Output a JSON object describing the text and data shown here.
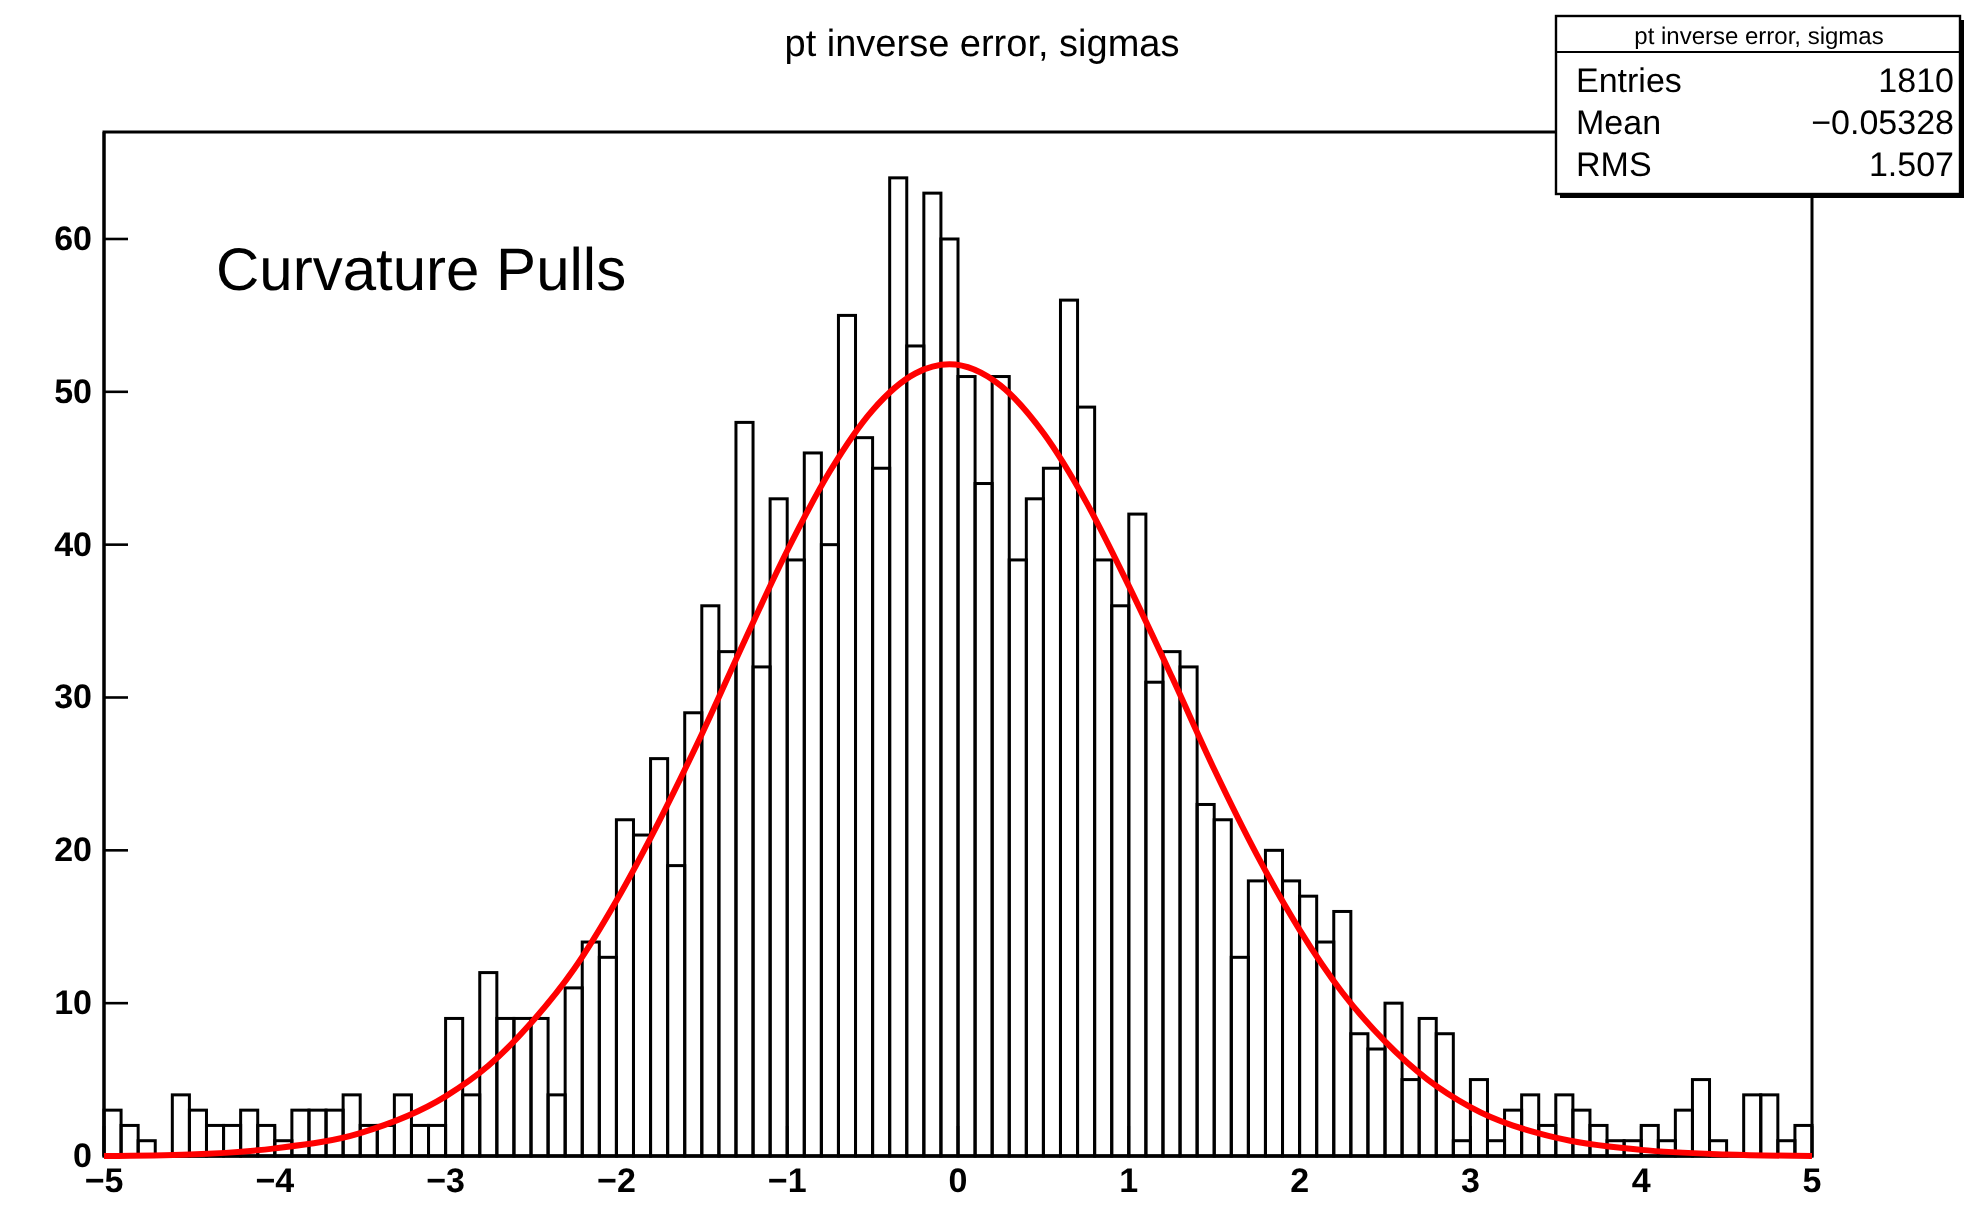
{
  "chart_data": {
    "type": "histogram",
    "title": "pt inverse error, sigmas",
    "bins": [
      -5,
      -4.9,
      -4.8,
      -4.7,
      -4.6,
      -4.5,
      -4.4,
      -4.3,
      -4.2,
      -4.1,
      -4,
      -3.9,
      -3.8,
      -3.7,
      -3.6,
      -3.5,
      -3.4,
      -3.3,
      -3.2,
      -3.1,
      -3,
      -2.9,
      -2.8,
      -2.7,
      -2.6,
      -2.5,
      -2.4,
      -2.3,
      -2.2,
      -2.1,
      -2,
      -1.9,
      -1.8,
      -1.7,
      -1.6,
      -1.5,
      -1.4,
      -1.3,
      -1.2,
      -1.1,
      -1,
      -0.9,
      -0.8,
      -0.7,
      -0.6,
      -0.5,
      -0.4,
      -0.3,
      -0.2,
      -0.1,
      0,
      0.1,
      0.2,
      0.3,
      0.4,
      0.5,
      0.6,
      0.7,
      0.8,
      0.9,
      1,
      1.1,
      1.2,
      1.3,
      1.4,
      1.5,
      1.6,
      1.7,
      1.8,
      1.9,
      2,
      2.1,
      2.2,
      2.3,
      2.4,
      2.5,
      2.6,
      2.7,
      2.8,
      2.9,
      3,
      3.1,
      3.2,
      3.3,
      3.4,
      3.5,
      3.6,
      3.7,
      3.8,
      3.9,
      4,
      4.1,
      4.2,
      4.3,
      4.4,
      4.5,
      4.6,
      4.7,
      4.8,
      4.9,
      5
    ],
    "series": [
      {
        "color": "#000000",
        "values": [
          3,
          2,
          1,
          0,
          4,
          3,
          2,
          2,
          3,
          2,
          1,
          3,
          3,
          3,
          4,
          2,
          2,
          4,
          2,
          2,
          9,
          4,
          12,
          9,
          9,
          9,
          4,
          11,
          14,
          13,
          22,
          21,
          26,
          19,
          29,
          36,
          33,
          48,
          32,
          43,
          39,
          46,
          40,
          55,
          47,
          45,
          64,
          53,
          63,
          60,
          51,
          44,
          51,
          39,
          43,
          45,
          56,
          49,
          39,
          36,
          42,
          31,
          33,
          32,
          23,
          22,
          13,
          18,
          20,
          18,
          17,
          14,
          16,
          8,
          7,
          10,
          5,
          9,
          8,
          1,
          5,
          1,
          3,
          4,
          2,
          4,
          3,
          2,
          1,
          1,
          2,
          1,
          3,
          5,
          1,
          0,
          4,
          4,
          1,
          2
        ]
      },
      {
        "type": "line",
        "color": "#ff0000",
        "x": [
          -5,
          -4.5,
          -4,
          -3.5,
          -3,
          -2.75,
          -2.5,
          -2.25,
          -2,
          -1.75,
          -1.5,
          -1.25,
          -1,
          -0.75,
          -0.5,
          -0.25,
          -0.05,
          0.25,
          0.5,
          0.75,
          1,
          1.25,
          1.5,
          1.75,
          2,
          2.25,
          2.5,
          2.75,
          3,
          3.5,
          4,
          4.5,
          5
        ],
        "values": [
          0,
          0.1,
          0.5,
          1.5,
          3.9,
          5.9,
          8.7,
          12.2,
          16.7,
          21.9,
          27.6,
          33.7,
          39.6,
          44.8,
          48.8,
          51.2,
          51.8,
          50.4,
          47.3,
          42.8,
          37.3,
          31.4,
          25.3,
          19.7,
          14.8,
          10.7,
          7.5,
          5,
          3.2,
          1.2,
          0.4,
          0.1,
          0
        ]
      }
    ],
    "xlim": [
      -5,
      5
    ],
    "xticks": [
      -5,
      -4,
      -3,
      -2,
      -1,
      0,
      1,
      2,
      3,
      4,
      5
    ],
    "ylim": [
      0,
      67
    ],
    "yticks": [
      0,
      10,
      20,
      30,
      40,
      50,
      60
    ],
    "grid": false,
    "marker": "none",
    "annotations": [
      "Curvature Pulls",
      "pt inverse error, sigmas",
      "Entries",
      "1810",
      "Mean",
      "−0.05328",
      "RMS",
      "1.507"
    ]
  }
}
